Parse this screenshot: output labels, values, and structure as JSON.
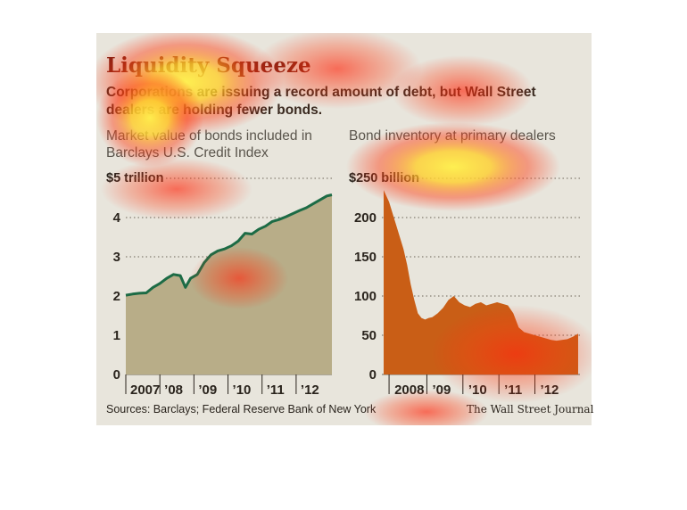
{
  "header": {
    "title": "Liquidity Squeeze",
    "subtitle": "Corporations are issuing a record amount of debt, but Wall Street dealers are holding fewer bonds."
  },
  "footer": {
    "sources": "Sources: Barclays; Federal Reserve Bank of New York",
    "credit": "The Wall Street Journal"
  },
  "colors": {
    "left_line": "#1c6b45",
    "left_fill": "#b8ad88",
    "right_fill": "#c95e16",
    "grid": "#6b6558",
    "heat_hot": "#ffe84a",
    "heat_warm": "#ff2a10"
  },
  "chart_data": [
    {
      "type": "area",
      "title": "Market value of bonds included in Barclays U.S. Credit Index",
      "y_top_label": "$5 trillion",
      "yticks": [
        0,
        1,
        2,
        3,
        4
      ],
      "ylim": [
        0,
        5
      ],
      "xlim": [
        2007,
        2013.05
      ],
      "xtick_labels": [
        "2007",
        "’08",
        "’09",
        "’10",
        "’11",
        "’12"
      ],
      "grid": true,
      "series": [
        {
          "x": [
            2007.0,
            2007.2,
            2007.4,
            2007.6,
            2007.8,
            2008.0,
            2008.2,
            2008.4,
            2008.6,
            2008.75,
            2008.9,
            2009.1,
            2009.3,
            2009.5,
            2009.7,
            2009.9,
            2010.1,
            2010.3,
            2010.5,
            2010.7,
            2010.9,
            2011.1,
            2011.3,
            2011.5,
            2011.7,
            2011.9,
            2012.1,
            2012.3,
            2012.5,
            2012.7,
            2012.9,
            2013.05
          ],
          "y": [
            2.02,
            2.05,
            2.07,
            2.08,
            2.22,
            2.32,
            2.45,
            2.55,
            2.52,
            2.22,
            2.45,
            2.55,
            2.85,
            3.05,
            3.15,
            3.2,
            3.28,
            3.4,
            3.6,
            3.58,
            3.7,
            3.78,
            3.9,
            3.95,
            4.02,
            4.1,
            4.18,
            4.25,
            4.35,
            4.45,
            4.55,
            4.58
          ]
        }
      ]
    },
    {
      "type": "area",
      "title": "Bond inventory at primary dealers",
      "y_top_label": "$250 billion",
      "yticks": [
        0,
        50,
        100,
        150,
        200
      ],
      "ylim": [
        0,
        250
      ],
      "xlim": [
        2007.75,
        2013.25
      ],
      "xtick_labels": [
        "2008",
        "’09",
        "’10",
        "’11",
        "’12"
      ],
      "grid": true,
      "series": [
        {
          "x": [
            2007.8,
            2007.85,
            2007.95,
            2008.05,
            2008.15,
            2008.25,
            2008.35,
            2008.45,
            2008.55,
            2008.65,
            2008.75,
            2008.85,
            2008.95,
            2009.05,
            2009.15,
            2009.3,
            2009.45,
            2009.6,
            2009.75,
            2009.9,
            2010.05,
            2010.2,
            2010.35,
            2010.5,
            2010.65,
            2010.8,
            2010.95,
            2011.1,
            2011.25,
            2011.4,
            2011.55,
            2011.7,
            2011.85,
            2012.0,
            2012.15,
            2012.3,
            2012.45,
            2012.6,
            2012.75,
            2012.9,
            2013.05,
            2013.2
          ],
          "y": [
            235,
            230,
            220,
            205,
            190,
            175,
            160,
            140,
            115,
            95,
            78,
            72,
            70,
            72,
            73,
            78,
            85,
            95,
            100,
            92,
            88,
            86,
            90,
            92,
            88,
            90,
            92,
            90,
            88,
            78,
            60,
            54,
            52,
            50,
            48,
            46,
            44,
            43,
            44,
            45,
            48,
            52
          ]
        }
      ]
    }
  ]
}
